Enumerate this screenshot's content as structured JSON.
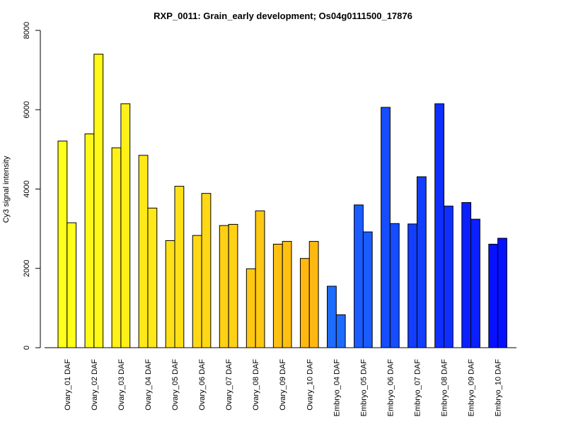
{
  "chart_data": {
    "type": "bar",
    "title": "RXP_0011: Grain_early development; Os04g0111500_17876",
    "xlabel": "",
    "ylabel": "Cy3 signal intensity",
    "ylim": [
      0,
      8000
    ],
    "yticks": [
      0,
      2000,
      4000,
      6000,
      8000
    ],
    "tick_labels": [
      "0",
      "2000",
      "4000",
      "6000",
      "8000"
    ],
    "grid": false,
    "legend": "none",
    "categories": [
      "Ovary_01 DAF",
      "Ovary_02 DAF",
      "Ovary_03 DAF",
      "Ovary_04 DAF",
      "Ovary_05 DAF",
      "Ovary_06 DAF",
      "Ovary_07 DAF",
      "Ovary_08 DAF",
      "Ovary_09 DAF",
      "Ovary_10 DAF",
      "Embryo_04 DAF",
      "Embryo_05 DAF",
      "Embryo_06 DAF",
      "Embryo_07 DAF",
      "Embryo_08 DAF",
      "Embryo_09 DAF",
      "Embryo_10 DAF"
    ],
    "series": [
      {
        "values": [
          5210,
          5390,
          5040,
          4850,
          2700,
          2830,
          3080,
          1990,
          2610,
          2250,
          1550,
          3600,
          6060,
          3120,
          6150,
          3660,
          2610
        ]
      },
      {
        "values": [
          3150,
          7400,
          6150,
          3520,
          4070,
          3890,
          3110,
          3450,
          2680,
          2680,
          830,
          2920,
          3130,
          4310,
          3570,
          3240,
          2760
        ]
      }
    ],
    "colors": [
      "#FFFF1A",
      "#FFF819",
      "#FFF018",
      "#FFE817",
      "#FFE016",
      "#FFD815",
      "#FFD014",
      "#FFC813",
      "#FFC012",
      "#FFB811",
      "#1E6BFF",
      "#1A5CFF",
      "#164DFF",
      "#123EFF",
      "#0E2FFF",
      "#0A20FF",
      "#0611FF"
    ]
  }
}
